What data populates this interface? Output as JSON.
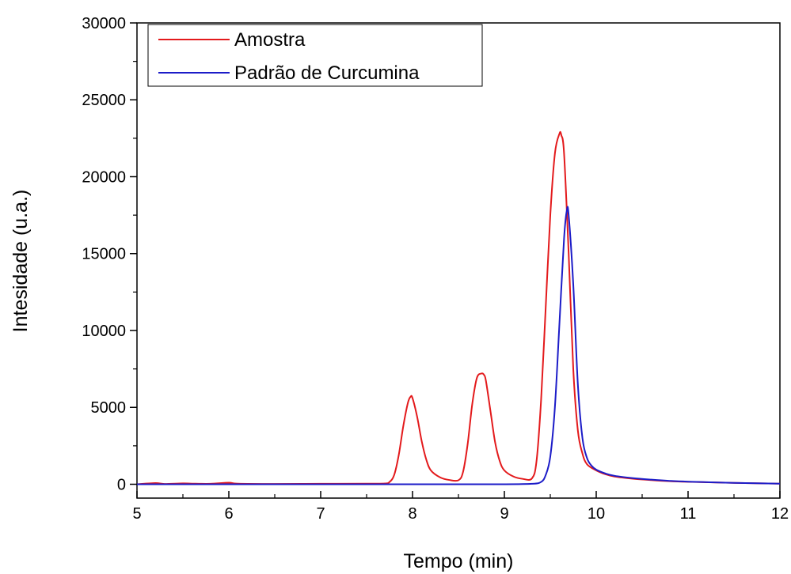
{
  "chart_data": {
    "type": "line",
    "title": "",
    "xlabel": "Tempo (min)",
    "ylabel": "Intesidade (u.a.)",
    "xlim": [
      5,
      12
    ],
    "ylim": [
      -900,
      30000
    ],
    "x_ticks": [
      "5",
      "6",
      "7",
      "8",
      "9",
      "10",
      "11",
      "12"
    ],
    "y_ticks": [
      "0",
      "5000",
      "10000",
      "15000",
      "20000",
      "25000",
      "30000"
    ],
    "grid": false,
    "legend_position": "top-left",
    "series": [
      {
        "name": "Amostra",
        "color": "#e31a1c",
        "x": [
          5.0,
          5.2,
          5.3,
          5.5,
          5.6,
          5.8,
          6.0,
          6.1,
          6.5,
          7.0,
          7.5,
          7.7,
          7.75,
          7.8,
          7.85,
          7.9,
          7.95,
          7.98,
          8.0,
          8.05,
          8.1,
          8.15,
          8.2,
          8.3,
          8.4,
          8.5,
          8.55,
          8.6,
          8.65,
          8.7,
          8.75,
          8.78,
          8.8,
          8.85,
          8.9,
          8.95,
          9.0,
          9.1,
          9.2,
          9.3,
          9.35,
          9.4,
          9.45,
          9.5,
          9.55,
          9.6,
          9.62,
          9.65,
          9.7,
          9.75,
          9.8,
          9.85,
          9.9,
          10.0,
          10.1,
          10.2,
          10.4,
          10.6,
          10.8,
          11.0,
          11.5,
          12.0
        ],
        "values": [
          0,
          80,
          20,
          60,
          40,
          30,
          100,
          40,
          20,
          30,
          40,
          50,
          150,
          600,
          1900,
          3800,
          5300,
          5700,
          5600,
          4400,
          2800,
          1600,
          900,
          450,
          280,
          260,
          800,
          2600,
          5200,
          6900,
          7200,
          7100,
          6700,
          4700,
          2700,
          1500,
          900,
          500,
          350,
          380,
          1500,
          5500,
          11500,
          17500,
          21500,
          22800,
          22700,
          21500,
          15000,
          7500,
          3500,
          2000,
          1300,
          900,
          650,
          500,
          360,
          270,
          200,
          160,
          90,
          40
        ]
      },
      {
        "name": "Padrão de Curcumina",
        "color": "#1c1cc8",
        "x": [
          5.0,
          6.0,
          7.0,
          8.0,
          9.0,
          9.3,
          9.4,
          9.45,
          9.5,
          9.55,
          9.6,
          9.65,
          9.68,
          9.7,
          9.75,
          9.8,
          9.85,
          9.9,
          9.95,
          10.0,
          10.1,
          10.2,
          10.4,
          10.6,
          10.8,
          11.0,
          11.5,
          12.0
        ],
        "values": [
          0,
          0,
          0,
          0,
          0,
          30,
          150,
          600,
          1800,
          5000,
          10500,
          16000,
          17800,
          17500,
          13000,
          6500,
          3000,
          1700,
          1200,
          950,
          700,
          550,
          400,
          300,
          220,
          170,
          90,
          40
        ]
      }
    ]
  }
}
